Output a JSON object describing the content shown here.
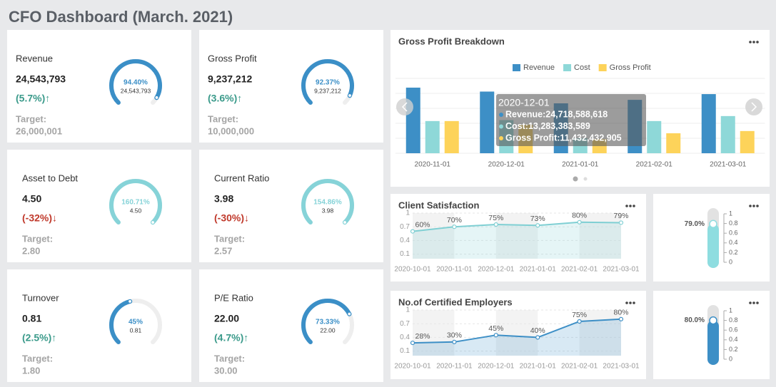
{
  "header": {
    "title": "CFO Dashboard (March. 2021)"
  },
  "kpis": [
    {
      "name": "Revenue",
      "value": "24,543,793",
      "change": "(5.7%)↑",
      "trend": "up",
      "target_label": "Target:",
      "target": "26,000,001",
      "gauge": {
        "value": 94.4,
        "label": "94.40%"
      },
      "color": "#3b8fc7"
    },
    {
      "name": "Gross Profit",
      "value": "9,237,212",
      "change": "(3.6%)↑",
      "trend": "up",
      "target_label": "Target:",
      "target": "10,000,000",
      "gauge": {
        "value": 92.37,
        "label": "92.37%"
      },
      "color": "#3b8fc7"
    },
    {
      "name": "Asset to Debt",
      "value": "4.50",
      "change": "(-32%)↓",
      "trend": "down",
      "target_label": "Target:",
      "target": "2.80",
      "gauge": {
        "value": 160.71,
        "label": "160.71%"
      },
      "color": "#86d3d8"
    },
    {
      "name": "Current Ratio",
      "value": "3.98",
      "change": "(-30%)↓",
      "trend": "down",
      "target_label": "Target:",
      "target": "2.57",
      "gauge": {
        "value": 154.86,
        "label": "154.86%"
      },
      "color": "#86d3d8"
    },
    {
      "name": "Turnover",
      "value": "0.81",
      "change": "(2.5%)↑",
      "trend": "up",
      "target_label": "Target:",
      "target": "1.80",
      "gauge": {
        "value": 45,
        "label": "45%"
      },
      "color": "#3b8fc7"
    },
    {
      "name": "P/E Ratio",
      "value": "22.00",
      "change": "(4.7%)↑",
      "trend": "up",
      "target_label": "Target:",
      "target": "30.00",
      "gauge": {
        "value": 73.33,
        "label": "73.33%"
      },
      "color": "#3b8fc7"
    }
  ],
  "chart_data": [
    {
      "type": "bar",
      "title": "Gross Profit Breakdown",
      "categories": [
        "2020-11-01",
        "2020-12-01",
        "2021-01-01",
        "2021-02-01",
        "2021-03-01"
      ],
      "series": [
        {
          "name": "Revenue",
          "color": "#3d8fc6",
          "values": [
            26300000000,
            24718588618,
            20000000000,
            21400000000,
            23700000000
          ]
        },
        {
          "name": "Cost",
          "color": "#8ed8d8",
          "values": [
            12900000000,
            13283383589,
            6000000000,
            12900000000,
            14900000000
          ]
        },
        {
          "name": "Gross Profit",
          "color": "#fdd35a",
          "values": [
            12900000000,
            11432432905,
            5700000000,
            8000000000,
            8900000000
          ]
        }
      ],
      "ylim": [
        0,
        30000000000
      ],
      "legend": "top",
      "tooltip": {
        "title": "2020-12-01",
        "items": [
          "Revenue:24,718,588,618",
          "Cost:13,283,383,589",
          "Gross Profit:11,432,432,905"
        ]
      }
    },
    {
      "type": "line",
      "title": "Client Satisfaction",
      "categories": [
        "2020-10-01",
        "2020-11-01",
        "2020-12-01",
        "2021-01-01",
        "2021-02-01",
        "2021-03-01"
      ],
      "values": [
        0.6,
        0.7,
        0.75,
        0.73,
        0.8,
        0.79
      ],
      "value_labels": [
        "60%",
        "70%",
        "75%",
        "73%",
        "80%",
        "79%"
      ],
      "color": "#7fcfd3",
      "ylim": [
        0,
        1
      ],
      "yticks": [
        1,
        0.7,
        0.4,
        0.1
      ]
    },
    {
      "type": "thermometer",
      "value": 0.79,
      "value_label": "79.0%",
      "color": "#8edde0",
      "ylim": [
        0,
        1
      ],
      "yticks": [
        1,
        0.8,
        0.6,
        0.4,
        0.2,
        0
      ]
    },
    {
      "type": "line",
      "title": "No.of Certified Employers",
      "categories": [
        "2020-10-01",
        "2020-11-01",
        "2020-12-01",
        "2021-01-01",
        "2021-02-01",
        "2021-03-01"
      ],
      "values": [
        0.28,
        0.3,
        0.45,
        0.4,
        0.75,
        0.8
      ],
      "value_labels": [
        "28%",
        "30%",
        "45%",
        "40%",
        "75%",
        "80%"
      ],
      "color": "#3d8fc6",
      "ylim": [
        0,
        1
      ],
      "yticks": [
        1,
        0.7,
        0.4,
        0.1
      ]
    },
    {
      "type": "thermometer",
      "value": 0.8,
      "value_label": "80.0%",
      "color": "#3d8fc6",
      "ylim": [
        0,
        1
      ],
      "yticks": [
        1,
        0.8,
        0.6,
        0.4,
        0.2,
        0
      ]
    }
  ]
}
